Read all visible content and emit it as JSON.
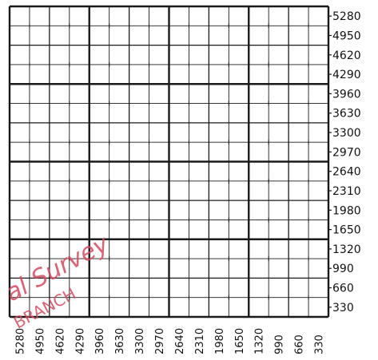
{
  "plat": {
    "right_scale_labels": [
      "5280",
      "4950",
      "4620",
      "4290",
      "3960",
      "3630",
      "3300",
      "2970",
      "2640",
      "2310",
      "1980",
      "1650",
      "1320",
      "990",
      "660",
      "330"
    ],
    "bottom_scale_labels": [
      "5280",
      "4950",
      "4620",
      "4290",
      "3960",
      "3630",
      "3300",
      "2970",
      "2640",
      "2310",
      "1980",
      "1650",
      "1320",
      "990",
      "660",
      "330"
    ],
    "stamp": {
      "line1": "al Survey",
      "line2": "BRANCH",
      "color": "#d9475e"
    },
    "colors": {
      "grid_line": "#1a1a1a",
      "label_text": "#111111"
    }
  }
}
